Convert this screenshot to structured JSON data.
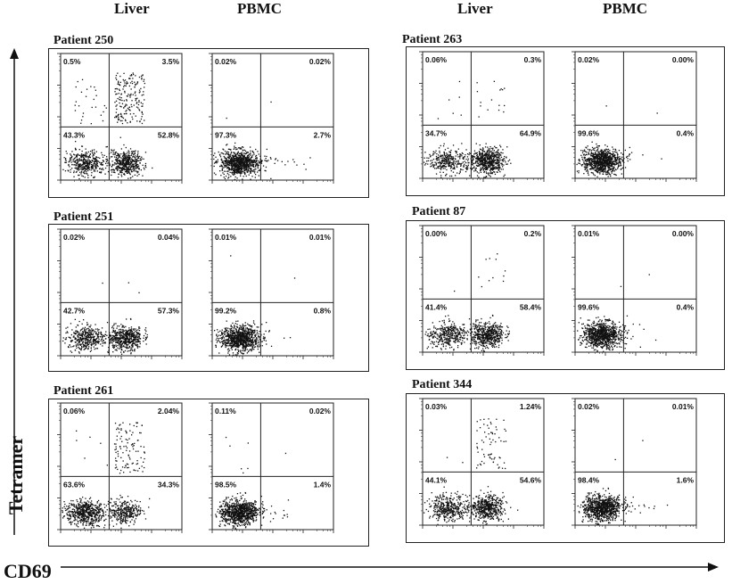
{
  "column_headers": {
    "left_liver": "Liver",
    "left_pbmc": "PBMC",
    "right_liver": "Liver",
    "right_pbmc": "PBMC"
  },
  "axes": {
    "y_title": "Tetramer",
    "x_title": "CD69"
  },
  "colors": {
    "dots": "#111111",
    "frame": "#222222",
    "background": "#ffffff"
  },
  "chart_data": {
    "type": "scatter",
    "plot_kind": "flow cytometry dot plots, quadrant gated",
    "xlabel": "CD69",
    "ylabel": "Tetramer",
    "scale": "log",
    "patients": [
      {
        "id": "Patient 250",
        "liver": {
          "ul": "0.5%",
          "ur": "3.5%",
          "ll": "43.3%",
          "lr": "52.8%"
        },
        "pbmc": {
          "ul": "0.02%",
          "ur": "0.02%",
          "ll": "97.3%",
          "lr": "2.7%"
        }
      },
      {
        "id": "Patient 251",
        "liver": {
          "ul": "0.02%",
          "ur": "0.04%",
          "ll": "42.7%",
          "lr": "57.3%"
        },
        "pbmc": {
          "ul": "0.01%",
          "ur": "0.01%",
          "ll": "99.2%",
          "lr": "0.8%"
        }
      },
      {
        "id": "Patient 261",
        "liver": {
          "ul": "0.06%",
          "ur": "2.04%",
          "ll": "63.6%",
          "lr": "34.3%"
        },
        "pbmc": {
          "ul": "0.11%",
          "ur": "0.02%",
          "ll": "98.5%",
          "lr": "1.4%"
        }
      },
      {
        "id": "Patient 263",
        "liver": {
          "ul": "0.06%",
          "ur": "0.3%",
          "ll": "34.7%",
          "lr": "64.9%"
        },
        "pbmc": {
          "ul": "0.02%",
          "ur": "0.00%",
          "ll": "99.6%",
          "lr": "0.4%"
        }
      },
      {
        "id": "Patient 87",
        "liver": {
          "ul": "0.00%",
          "ur": "0.2%",
          "ll": "41.4%",
          "lr": "58.4%"
        },
        "pbmc": {
          "ul": "0.01%",
          "ur": "0.00%",
          "ll": "99.6%",
          "lr": "0.4%"
        }
      },
      {
        "id": "Patient 344",
        "liver": {
          "ul": "0.03%",
          "ur": "1.24%",
          "ll": "44.1%",
          "lr": "54.6%"
        },
        "pbmc": {
          "ul": "0.02%",
          "ur": "0.01%",
          "ll": "98.4%",
          "lr": "1.6%"
        }
      }
    ]
  }
}
